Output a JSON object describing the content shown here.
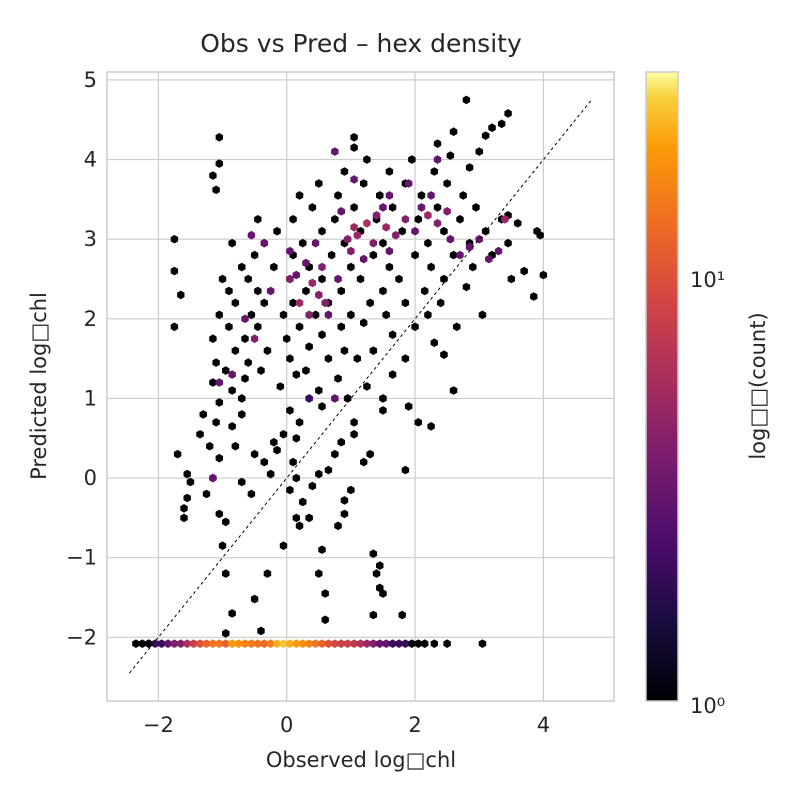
{
  "chart_data": {
    "type": "heatmap",
    "subtype": "hexbin",
    "title": "Obs vs Pred – hex density",
    "xlabel": "Observed log□chl",
    "ylabel": "Predicted log□chl",
    "xlim": [
      -2.8,
      5.1
    ],
    "ylim": [
      -2.8,
      5.1
    ],
    "xticks": [
      -2,
      0,
      2,
      4
    ],
    "yticks": [
      -2,
      -1,
      0,
      1,
      2,
      3,
      4,
      5
    ],
    "grid": true,
    "colormap": "inferno",
    "color_scale": "log",
    "colorbar": {
      "label": "log□□(count)",
      "ticks": [
        {
          "value": 1,
          "label": "10⁰"
        },
        {
          "value": 10,
          "label": "10¹"
        }
      ],
      "range": [
        1,
        30
      ]
    },
    "reference_line": {
      "style": "dashed",
      "color": "#000000",
      "from": [
        -2.45,
        -2.45
      ],
      "to": [
        4.75,
        4.75
      ]
    },
    "hexbins": [
      [
        -2.35,
        -2.08,
        1
      ],
      [
        -2.25,
        -2.08,
        1
      ],
      [
        -2.15,
        -2.08,
        1
      ],
      [
        -2.05,
        -2.08,
        2
      ],
      [
        -1.95,
        -2.08,
        2
      ],
      [
        -1.85,
        -2.08,
        3
      ],
      [
        -1.75,
        -2.08,
        4
      ],
      [
        -1.65,
        -2.08,
        4
      ],
      [
        -1.55,
        -2.08,
        6
      ],
      [
        -1.45,
        -2.08,
        8
      ],
      [
        -1.35,
        -2.08,
        10
      ],
      [
        -1.25,
        -2.08,
        12
      ],
      [
        -1.15,
        -2.08,
        14
      ],
      [
        -1.05,
        -2.08,
        14
      ],
      [
        -0.95,
        -2.08,
        12
      ],
      [
        -0.85,
        -2.08,
        20
      ],
      [
        -0.75,
        -2.08,
        18
      ],
      [
        -0.65,
        -2.08,
        16
      ],
      [
        -0.55,
        -2.08,
        15
      ],
      [
        -0.45,
        -2.08,
        14
      ],
      [
        -0.35,
        -2.08,
        13
      ],
      [
        -0.25,
        -2.08,
        15
      ],
      [
        -0.15,
        -2.08,
        22
      ],
      [
        -0.05,
        -2.08,
        25
      ],
      [
        0.05,
        -2.08,
        22
      ],
      [
        0.15,
        -2.08,
        20
      ],
      [
        0.25,
        -2.08,
        18
      ],
      [
        0.35,
        -2.08,
        16
      ],
      [
        0.45,
        -2.08,
        14
      ],
      [
        0.55,
        -2.08,
        12
      ],
      [
        0.65,
        -2.08,
        10
      ],
      [
        0.75,
        -2.08,
        9
      ],
      [
        0.85,
        -2.08,
        8
      ],
      [
        0.95,
        -2.08,
        8
      ],
      [
        1.05,
        -2.08,
        7
      ],
      [
        1.15,
        -2.08,
        6
      ],
      [
        1.25,
        -2.08,
        5
      ],
      [
        1.35,
        -2.08,
        4
      ],
      [
        1.45,
        -2.08,
        3
      ],
      [
        1.55,
        -2.08,
        3
      ],
      [
        1.65,
        -2.08,
        2
      ],
      [
        1.75,
        -2.08,
        2
      ],
      [
        1.85,
        -2.08,
        2
      ],
      [
        1.95,
        -2.08,
        1
      ],
      [
        2.05,
        -2.08,
        1
      ],
      [
        2.15,
        -2.08,
        1
      ],
      [
        2.3,
        -2.08,
        1
      ],
      [
        2.5,
        -2.08,
        1
      ],
      [
        3.05,
        -2.08,
        1
      ],
      [
        -2.15,
        -2.08,
        1
      ],
      [
        -0.95,
        -1.95,
        1
      ],
      [
        -0.4,
        -1.92,
        1
      ],
      [
        0.6,
        -1.78,
        1
      ],
      [
        1.35,
        -1.72,
        1
      ],
      [
        1.8,
        -1.72,
        1
      ],
      [
        -0.85,
        -1.7,
        1
      ],
      [
        -0.5,
        -1.52,
        1
      ],
      [
        0.6,
        -1.45,
        1
      ],
      [
        1.5,
        -1.45,
        1
      ],
      [
        1.45,
        -1.38,
        1
      ],
      [
        -0.95,
        -1.2,
        1
      ],
      [
        -0.3,
        -1.2,
        1
      ],
      [
        0.5,
        -1.2,
        1
      ],
      [
        1.4,
        -1.2,
        1
      ],
      [
        1.45,
        -1.1,
        1
      ],
      [
        -1.0,
        -0.85,
        1
      ],
      [
        -0.05,
        -0.85,
        1
      ],
      [
        0.55,
        -0.9,
        1
      ],
      [
        1.35,
        -0.95,
        1
      ],
      [
        -0.95,
        -0.55,
        1
      ],
      [
        0.2,
        -0.6,
        1
      ],
      [
        0.8,
        -0.6,
        1
      ],
      [
        -1.6,
        -0.5,
        1
      ],
      [
        -1.05,
        -0.45,
        1
      ],
      [
        0.15,
        -0.5,
        1
      ],
      [
        0.35,
        -0.5,
        1
      ],
      [
        0.9,
        -0.45,
        1
      ],
      [
        -1.6,
        -0.38,
        1
      ],
      [
        0.25,
        -0.3,
        1
      ],
      [
        0.9,
        -0.28,
        1
      ],
      [
        -1.55,
        -0.25,
        1
      ],
      [
        -1.25,
        -0.2,
        1
      ],
      [
        -0.55,
        -0.2,
        1
      ],
      [
        0.05,
        -0.15,
        1
      ],
      [
        0.4,
        -0.1,
        1
      ],
      [
        1.0,
        -0.15,
        1
      ],
      [
        -1.5,
        -0.05,
        1
      ],
      [
        -1.15,
        0.0,
        2
      ],
      [
        -0.7,
        -0.05,
        1
      ],
      [
        0.15,
        0.0,
        1
      ],
      [
        0.5,
        0.05,
        1
      ],
      [
        -1.55,
        0.05,
        1
      ],
      [
        -0.25,
        0.05,
        1
      ],
      [
        0.65,
        0.1,
        1
      ],
      [
        1.85,
        0.1,
        1
      ],
      [
        -1.05,
        0.25,
        1
      ],
      [
        -0.35,
        0.2,
        1
      ],
      [
        0.1,
        0.2,
        1
      ],
      [
        1.2,
        0.2,
        1
      ],
      [
        -0.5,
        0.3,
        1
      ],
      [
        -0.15,
        0.35,
        1
      ],
      [
        0.75,
        0.3,
        1
      ],
      [
        1.3,
        0.3,
        1
      ],
      [
        -1.7,
        0.3,
        1
      ],
      [
        -1.2,
        0.4,
        1
      ],
      [
        -0.8,
        0.4,
        1
      ],
      [
        -0.2,
        0.45,
        1
      ],
      [
        0.15,
        0.5,
        1
      ],
      [
        0.85,
        0.45,
        1
      ],
      [
        -1.35,
        0.55,
        1
      ],
      [
        -0.05,
        0.55,
        1
      ],
      [
        1.05,
        0.55,
        1
      ],
      [
        2.25,
        0.65,
        1
      ],
      [
        -1.1,
        0.7,
        1
      ],
      [
        -0.85,
        0.65,
        1
      ],
      [
        0.2,
        0.7,
        1
      ],
      [
        1.05,
        0.7,
        1
      ],
      [
        2.05,
        0.7,
        1
      ],
      [
        -1.3,
        0.8,
        1
      ],
      [
        -0.7,
        0.8,
        1
      ],
      [
        0.05,
        0.85,
        1
      ],
      [
        0.55,
        0.9,
        1
      ],
      [
        1.5,
        0.85,
        1
      ],
      [
        1.9,
        0.9,
        1
      ],
      [
        -1.05,
        0.95,
        1
      ],
      [
        -0.7,
        1.0,
        1
      ],
      [
        0.35,
        1.0,
        2
      ],
      [
        0.95,
        1.0,
        1
      ],
      [
        1.5,
        1.0,
        1
      ],
      [
        2.6,
        1.1,
        1
      ],
      [
        -0.85,
        1.1,
        1
      ],
      [
        -0.1,
        1.15,
        1
      ],
      [
        0.5,
        1.1,
        1
      ],
      [
        1.25,
        1.15,
        1
      ],
      [
        -1.15,
        1.2,
        1
      ],
      [
        -0.65,
        1.25,
        1
      ],
      [
        0.15,
        1.3,
        1
      ],
      [
        0.8,
        1.25,
        1
      ],
      [
        1.65,
        1.3,
        1
      ],
      [
        -0.95,
        1.35,
        1
      ],
      [
        -0.4,
        1.35,
        1
      ],
      [
        0.3,
        1.35,
        1
      ],
      [
        -1.1,
        1.45,
        1
      ],
      [
        -0.6,
        1.45,
        1
      ],
      [
        0.05,
        1.5,
        1
      ],
      [
        0.65,
        1.5,
        1
      ],
      [
        1.1,
        1.5,
        1
      ],
      [
        1.85,
        1.5,
        1
      ],
      [
        2.45,
        1.55,
        1
      ],
      [
        -0.8,
        1.6,
        1
      ],
      [
        -0.3,
        1.6,
        1
      ],
      [
        0.35,
        1.65,
        1
      ],
      [
        0.9,
        1.6,
        1
      ],
      [
        1.35,
        1.6,
        1
      ],
      [
        2.3,
        1.7,
        1
      ],
      [
        -1.15,
        1.75,
        1
      ],
      [
        -0.65,
        1.75,
        1
      ],
      [
        0.0,
        1.75,
        1
      ],
      [
        0.55,
        1.8,
        1
      ],
      [
        1.65,
        1.8,
        1
      ],
      [
        -0.9,
        1.9,
        1
      ],
      [
        -0.45,
        1.9,
        1
      ],
      [
        0.2,
        1.9,
        1
      ],
      [
        0.85,
        1.9,
        1
      ],
      [
        1.2,
        1.95,
        1
      ],
      [
        2.0,
        1.9,
        1
      ],
      [
        2.65,
        1.9,
        1
      ],
      [
        -1.75,
        1.9,
        1
      ],
      [
        -1.05,
        2.05,
        1
      ],
      [
        -0.55,
        2.05,
        1
      ],
      [
        -0.05,
        2.05,
        1
      ],
      [
        0.45,
        2.05,
        1
      ],
      [
        1.0,
        2.05,
        1
      ],
      [
        1.55,
        2.05,
        1
      ],
      [
        2.2,
        2.05,
        1
      ],
      [
        3.05,
        2.05,
        1
      ],
      [
        -0.8,
        2.2,
        1
      ],
      [
        -0.35,
        2.2,
        1
      ],
      [
        0.1,
        2.2,
        1
      ],
      [
        0.65,
        2.2,
        1
      ],
      [
        1.3,
        2.2,
        1
      ],
      [
        1.85,
        2.2,
        1
      ],
      [
        2.4,
        2.2,
        1
      ],
      [
        -1.65,
        2.3,
        1
      ],
      [
        -0.9,
        2.35,
        1
      ],
      [
        -0.45,
        2.35,
        1
      ],
      [
        0.3,
        2.35,
        1
      ],
      [
        0.85,
        2.35,
        1
      ],
      [
        1.5,
        2.35,
        1
      ],
      [
        2.15,
        2.35,
        1
      ],
      [
        2.8,
        2.4,
        1
      ],
      [
        -1.0,
        2.5,
        1
      ],
      [
        -0.6,
        2.5,
        1
      ],
      [
        0.05,
        2.5,
        1
      ],
      [
        0.55,
        2.5,
        1
      ],
      [
        1.15,
        2.5,
        1
      ],
      [
        1.75,
        2.5,
        1
      ],
      [
        2.45,
        2.5,
        1
      ],
      [
        3.5,
        2.5,
        1
      ],
      [
        -1.75,
        2.6,
        1
      ],
      [
        -0.7,
        2.65,
        1
      ],
      [
        -0.2,
        2.65,
        1
      ],
      [
        0.35,
        2.65,
        1
      ],
      [
        1.0,
        2.65,
        1
      ],
      [
        1.6,
        2.65,
        1
      ],
      [
        2.25,
        2.65,
        1
      ],
      [
        2.9,
        2.65,
        1
      ],
      [
        -0.5,
        2.8,
        1
      ],
      [
        0.1,
        2.8,
        1
      ],
      [
        0.7,
        2.8,
        1
      ],
      [
        1.35,
        2.8,
        1
      ],
      [
        2.0,
        2.8,
        1
      ],
      [
        2.6,
        2.8,
        1
      ],
      [
        3.2,
        2.8,
        1
      ],
      [
        -0.85,
        2.95,
        1
      ],
      [
        -0.35,
        2.95,
        1
      ],
      [
        0.25,
        2.95,
        1
      ],
      [
        0.9,
        2.95,
        1
      ],
      [
        1.5,
        2.95,
        1
      ],
      [
        2.2,
        2.95,
        1
      ],
      [
        2.85,
        2.95,
        1
      ],
      [
        3.45,
        2.95,
        1
      ],
      [
        -1.75,
        3.0,
        1
      ],
      [
        -0.15,
        3.1,
        1
      ],
      [
        0.55,
        3.1,
        1
      ],
      [
        1.15,
        3.1,
        1
      ],
      [
        1.8,
        3.1,
        1
      ],
      [
        2.45,
        3.1,
        1
      ],
      [
        3.1,
        3.1,
        1
      ],
      [
        3.9,
        3.1,
        1
      ],
      [
        -0.45,
        3.25,
        1
      ],
      [
        0.1,
        3.25,
        1
      ],
      [
        0.75,
        3.25,
        1
      ],
      [
        1.4,
        3.25,
        1
      ],
      [
        2.05,
        3.25,
        1
      ],
      [
        2.7,
        3.25,
        1
      ],
      [
        3.35,
        3.25,
        1
      ],
      [
        0.4,
        3.4,
        1
      ],
      [
        1.05,
        3.4,
        1
      ],
      [
        1.65,
        3.4,
        1
      ],
      [
        2.35,
        3.4,
        1
      ],
      [
        2.95,
        3.4,
        1
      ],
      [
        0.2,
        3.55,
        1
      ],
      [
        0.8,
        3.55,
        1
      ],
      [
        1.45,
        3.55,
        1
      ],
      [
        2.1,
        3.55,
        1
      ],
      [
        2.75,
        3.55,
        1
      ],
      [
        -1.1,
        3.62,
        1
      ],
      [
        0.5,
        3.7,
        1
      ],
      [
        1.2,
        3.7,
        1
      ],
      [
        1.85,
        3.7,
        1
      ],
      [
        2.5,
        3.7,
        1
      ],
      [
        -1.15,
        3.8,
        1
      ],
      [
        0.9,
        3.85,
        1
      ],
      [
        1.6,
        3.85,
        1
      ],
      [
        2.3,
        3.85,
        1
      ],
      [
        2.85,
        3.9,
        1
      ],
      [
        -1.05,
        3.95,
        1
      ],
      [
        1.25,
        4.0,
        1
      ],
      [
        1.95,
        4.0,
        1
      ],
      [
        2.55,
        4.05,
        1
      ],
      [
        3.0,
        4.1,
        1
      ],
      [
        1.05,
        4.15,
        1
      ],
      [
        2.35,
        4.2,
        1
      ],
      [
        3.1,
        4.3,
        1
      ],
      [
        1.05,
        4.28,
        1
      ],
      [
        -1.05,
        4.28,
        1
      ],
      [
        2.6,
        4.35,
        1
      ],
      [
        3.35,
        4.45,
        1
      ],
      [
        3.45,
        4.58,
        1
      ],
      [
        2.8,
        4.75,
        1
      ],
      [
        3.2,
        4.4,
        1
      ],
      [
        3.7,
        2.6,
        1
      ],
      [
        4.0,
        2.55,
        1
      ],
      [
        3.85,
        2.28,
        1
      ],
      [
        3.95,
        3.05,
        1
      ],
      [
        3.45,
        3.3,
        1
      ],
      [
        3.6,
        3.2,
        1
      ],
      [
        -0.65,
        2.0,
        3
      ],
      [
        -0.5,
        1.75,
        4
      ],
      [
        -0.25,
        2.35,
        3
      ],
      [
        0.05,
        2.5,
        4
      ],
      [
        0.2,
        2.2,
        5
      ],
      [
        0.35,
        2.05,
        4
      ],
      [
        0.5,
        2.3,
        4
      ],
      [
        0.65,
        2.05,
        3
      ],
      [
        0.3,
        2.7,
        3
      ],
      [
        0.55,
        2.65,
        4
      ],
      [
        0.8,
        2.5,
        3
      ],
      [
        1.0,
        2.85,
        4
      ],
      [
        1.1,
        3.05,
        5
      ],
      [
        1.25,
        3.2,
        6
      ],
      [
        1.4,
        3.3,
        4
      ],
      [
        1.55,
        3.15,
        5
      ],
      [
        1.7,
        3.05,
        4
      ],
      [
        1.85,
        3.25,
        4
      ],
      [
        2.0,
        3.1,
        3
      ],
      [
        2.2,
        3.3,
        5
      ],
      [
        2.35,
        3.2,
        4
      ],
      [
        2.55,
        3.0,
        3
      ],
      [
        2.7,
        2.8,
        3
      ],
      [
        2.85,
        2.9,
        3
      ],
      [
        3.0,
        3.0,
        3
      ],
      [
        3.15,
        2.75,
        3
      ],
      [
        3.3,
        2.85,
        3
      ],
      [
        0.85,
        3.35,
        3
      ],
      [
        1.05,
        3.15,
        5
      ],
      [
        1.35,
        2.95,
        4
      ],
      [
        1.6,
        2.85,
        3
      ],
      [
        0.4,
        2.45,
        5
      ],
      [
        0.15,
        2.55,
        3
      ],
      [
        -0.85,
        1.3,
        3
      ],
      [
        -1.05,
        1.2,
        3
      ],
      [
        0.75,
        1.0,
        3
      ],
      [
        1.6,
        3.55,
        3
      ],
      [
        2.25,
        3.55,
        3
      ],
      [
        1.9,
        3.7,
        3
      ],
      [
        2.35,
        4.0,
        3
      ],
      [
        3.4,
        3.25,
        5
      ],
      [
        1.05,
        3.75,
        3
      ],
      [
        0.75,
        4.1,
        3
      ],
      [
        0.05,
        2.85,
        3
      ],
      [
        -0.35,
        2.95,
        3
      ],
      [
        -0.55,
        3.05,
        3
      ],
      [
        -1.15,
        0.0,
        3
      ],
      [
        0.95,
        3.0,
        4
      ],
      [
        1.2,
        2.75,
        3
      ],
      [
        1.5,
        3.4,
        3
      ],
      [
        2.1,
        3.4,
        3
      ],
      [
        2.5,
        3.35,
        4
      ],
      [
        0.45,
        2.95,
        3
      ],
      [
        0.6,
        2.2,
        4
      ]
    ]
  }
}
